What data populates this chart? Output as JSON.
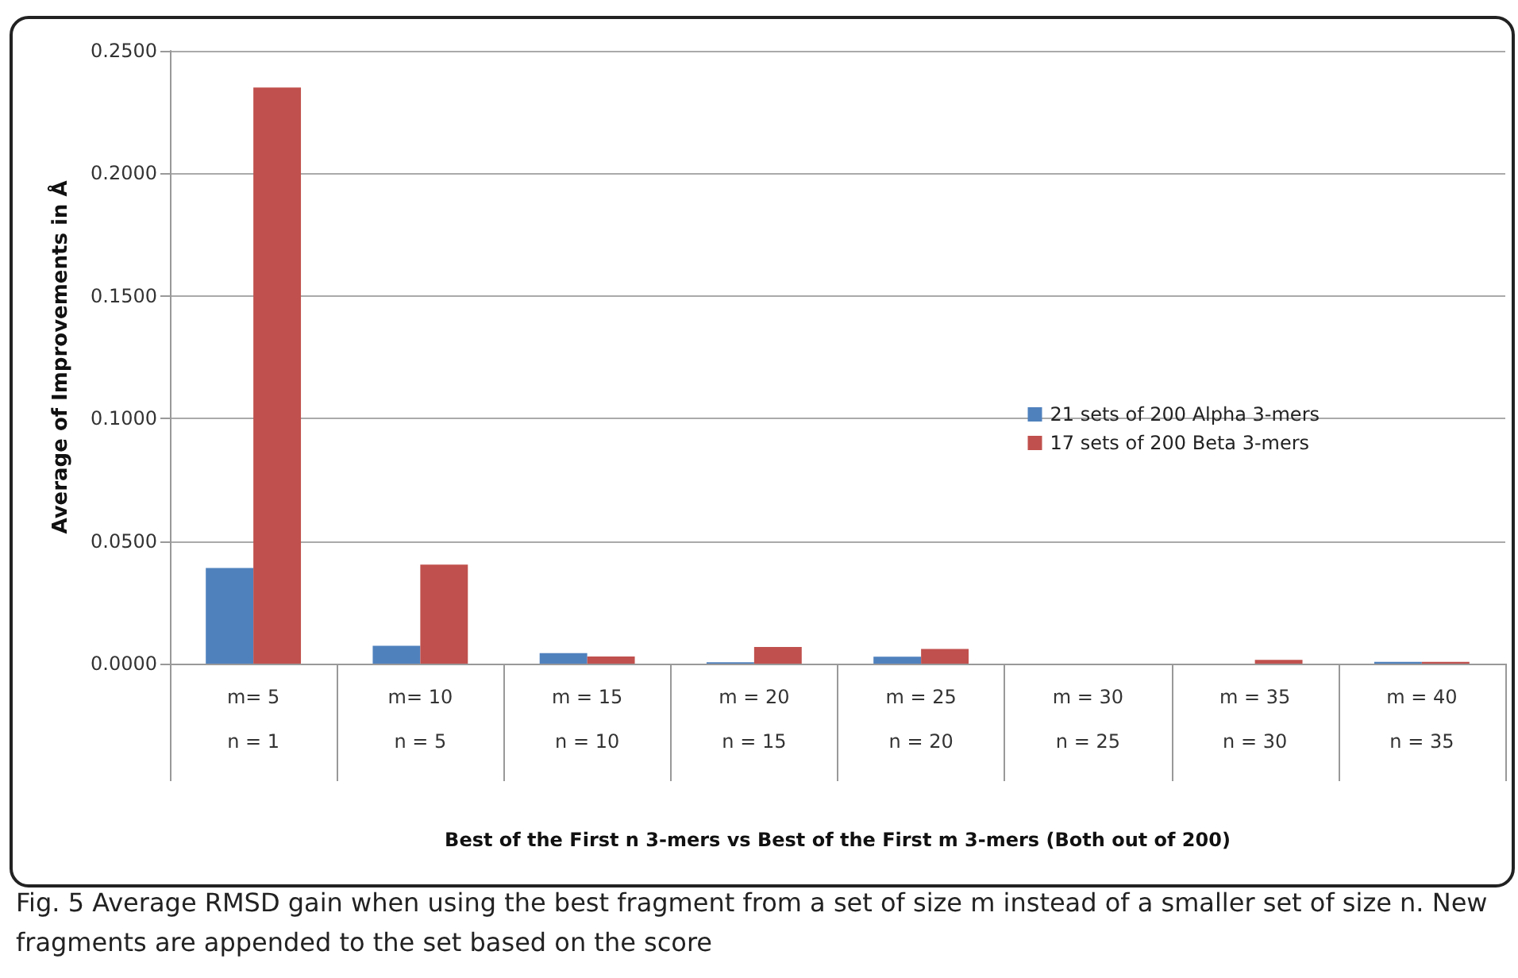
{
  "chart_data": {
    "type": "bar",
    "xlabel": "Best of the First n 3-mers vs Best of the First m 3-mers (Both out of 200)",
    "ylabel": "Average of Improvements in Å",
    "categories": [
      "m= 5\n\nn = 1",
      "m= 10\n\nn = 5",
      "m = 15\n\nn = 10",
      "m = 20\n\nn = 15",
      "m = 25\n\nn = 20",
      "m = 30\n\nn = 25",
      "m = 35\n\nn = 30",
      "m = 40\n\nn = 35"
    ],
    "series": [
      {
        "name": "21 sets of 200 Alpha 3-mers",
        "color": "#4f81bd",
        "values": [
          0.039,
          0.0073,
          0.0043,
          0.0006,
          0.0028,
          0,
          0,
          0.0007
        ]
      },
      {
        "name": "17 sets of 200 Beta 3-mers",
        "color": "#c0504d",
        "values": [
          0.235,
          0.0404,
          0.0029,
          0.0068,
          0.006,
          0,
          0.0015,
          0.0007
        ]
      }
    ],
    "ylim": [
      0,
      0.25
    ],
    "yticks": [
      {
        "value": 0,
        "label": "0.0000"
      },
      {
        "value": 0.05,
        "label": "0.0500"
      },
      {
        "value": 0.1,
        "label": "0.1000"
      },
      {
        "value": 0.15,
        "label": "0.1500"
      },
      {
        "value": 0.2,
        "label": "0.2000"
      },
      {
        "value": 0.25,
        "label": "0.2500"
      }
    ],
    "grid": "y",
    "legend": "right",
    "annotations": [
      "Fig. 5 Average RMSD gain when using the best fragment from a set of size m instead of a smaller set of size n. New fragments are appended to the set based on the score"
    ]
  }
}
